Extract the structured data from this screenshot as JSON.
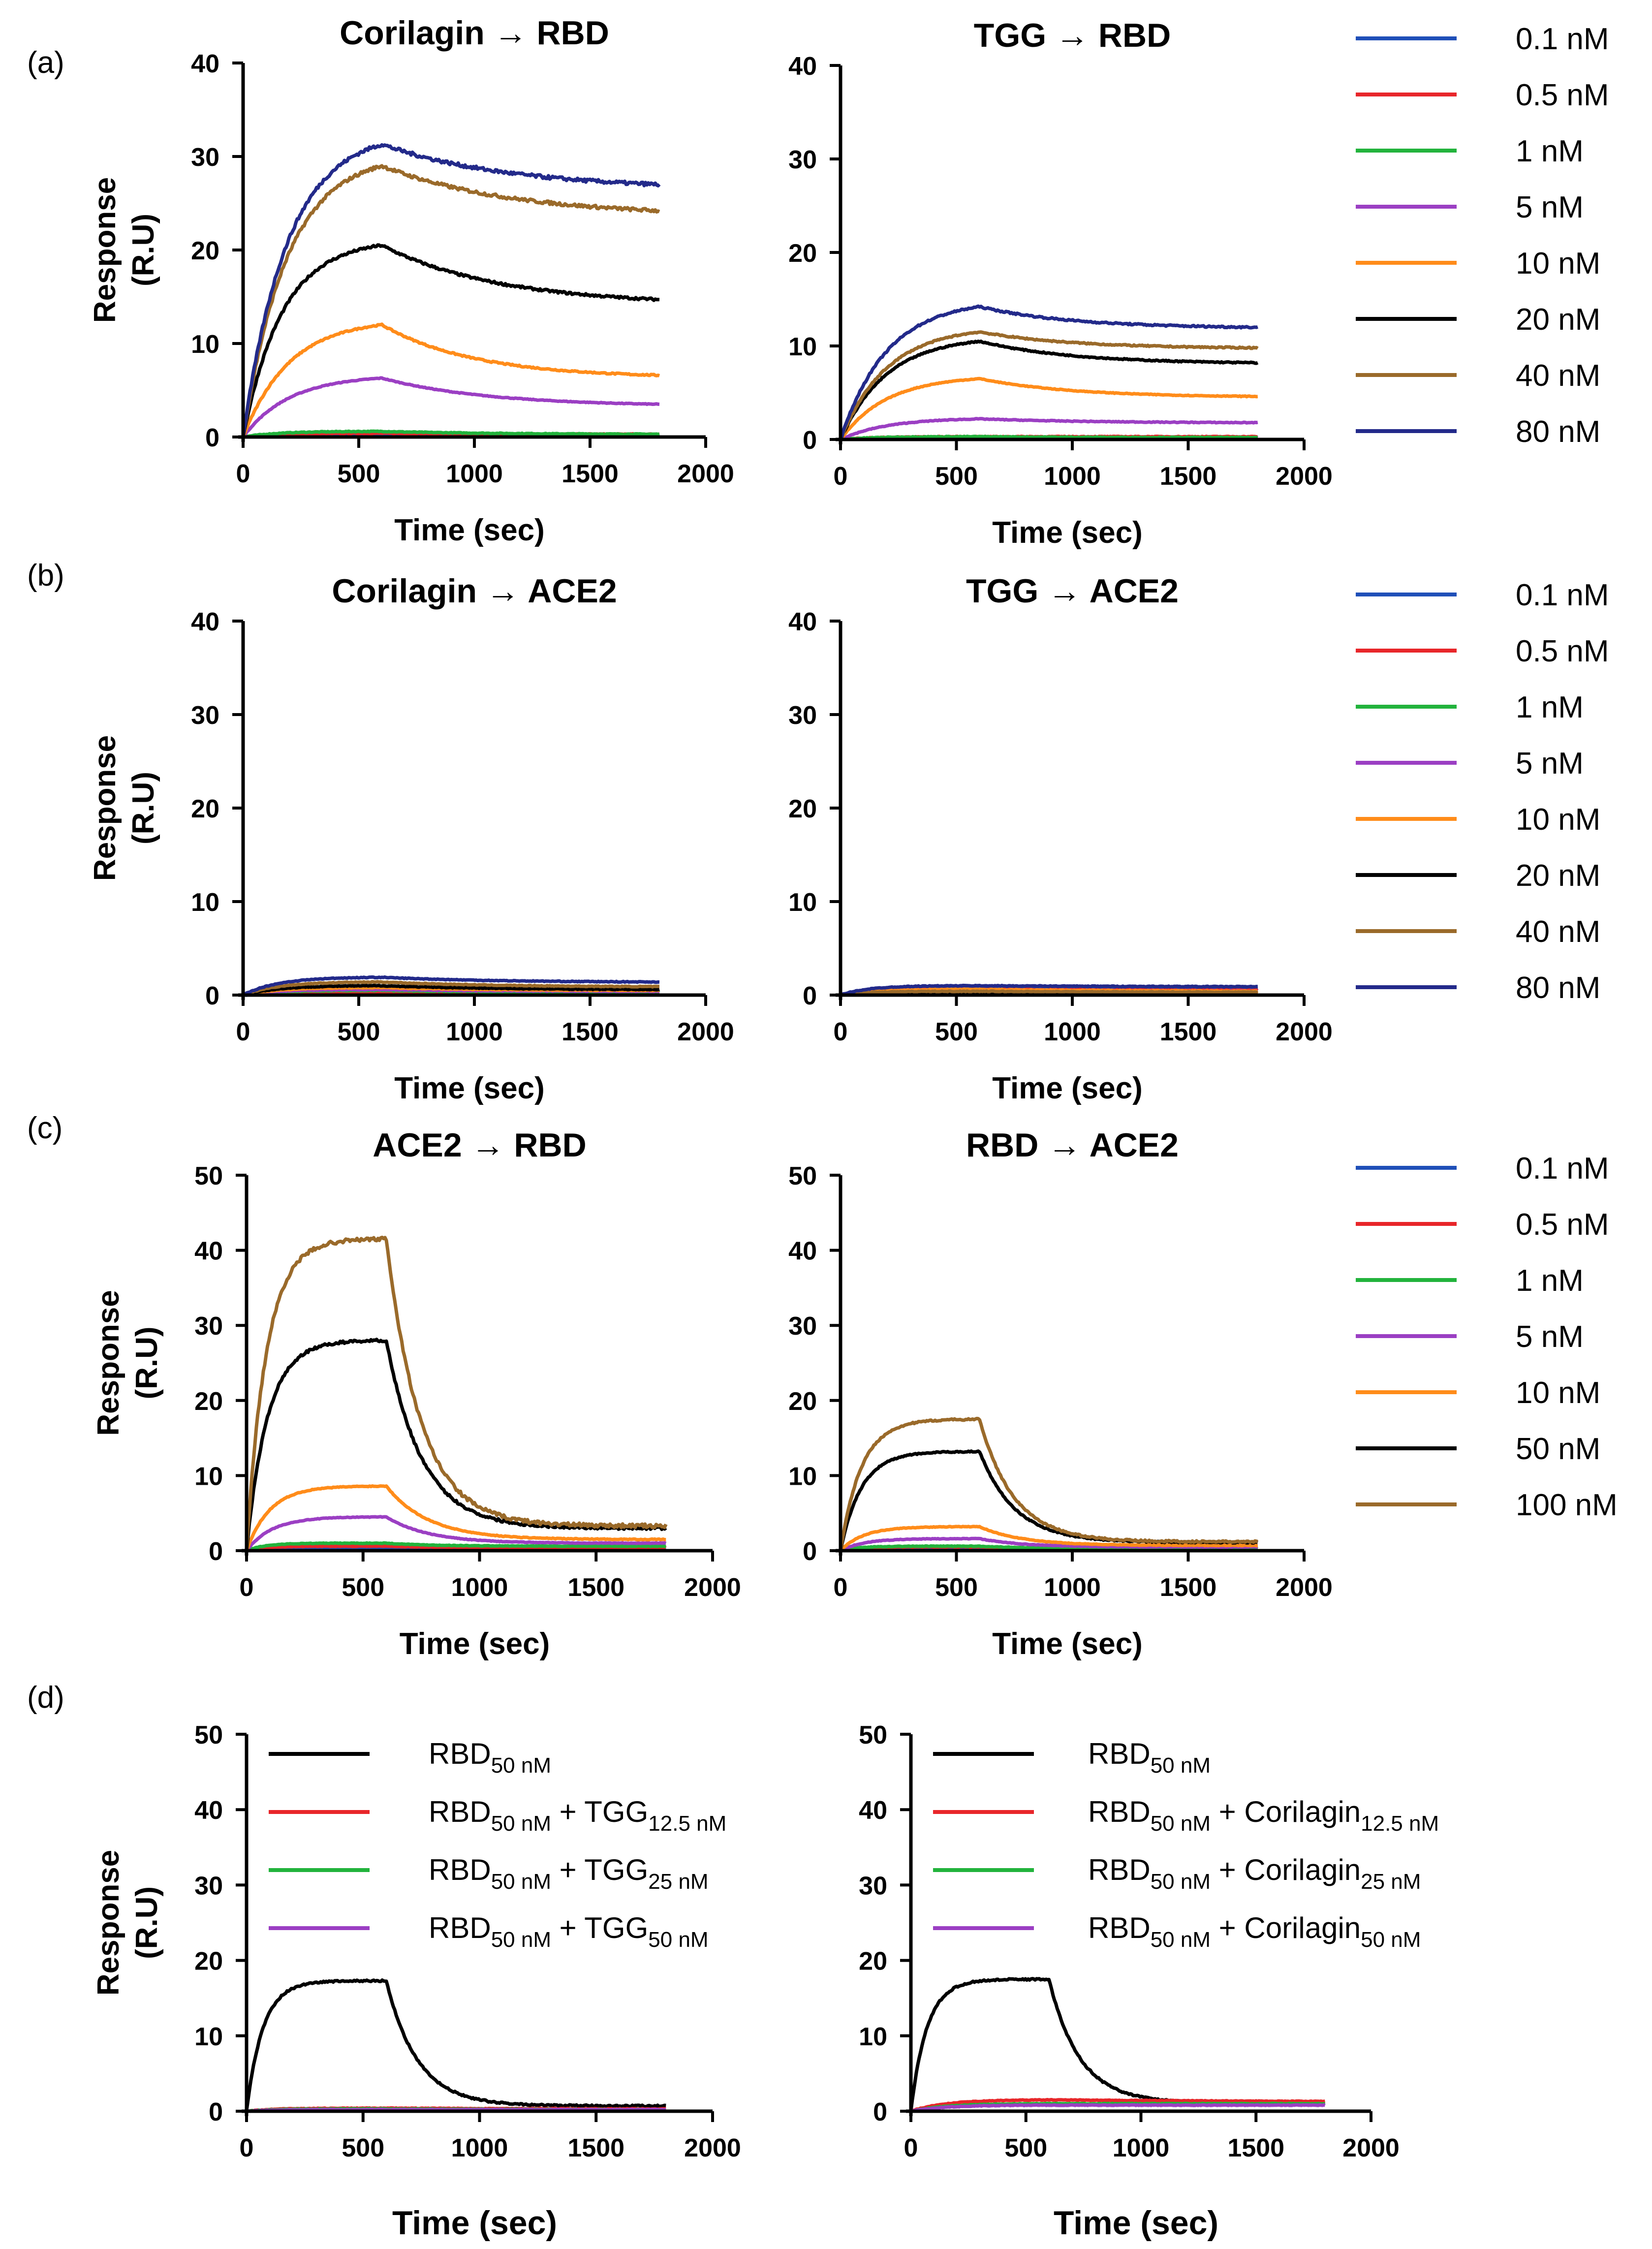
{
  "panel_labels": [
    "(a)",
    "(b)",
    "(c)",
    "(d)"
  ],
  "legends": {
    "ab": [
      {
        "label": "0.1 nM",
        "color": "#1f4fb8"
      },
      {
        "label": "0.5 nM",
        "color": "#e8262a"
      },
      {
        "label": "1 nM",
        "color": "#22b33c"
      },
      {
        "label": "5 nM",
        "color": "#9b3fc3"
      },
      {
        "label": "10 nM",
        "color": "#ff8c1a"
      },
      {
        "label": "20 nM",
        "color": "#000000"
      },
      {
        "label": "40 nM",
        "color": "#9a6a2a"
      },
      {
        "label": "80 nM",
        "color": "#232a8a"
      }
    ],
    "c": [
      {
        "label": "0.1 nM",
        "color": "#1f4fb8"
      },
      {
        "label": "0.5 nM",
        "color": "#e8262a"
      },
      {
        "label": "1 nM",
        "color": "#22b33c"
      },
      {
        "label": "5 nM",
        "color": "#9b3fc3"
      },
      {
        "label": "10 nM",
        "color": "#ff8c1a"
      },
      {
        "label": "50 nM",
        "color": "#000000"
      },
      {
        "label": "100 nM",
        "color": "#9a6a2a"
      }
    ]
  },
  "chart_data": [
    {
      "id": "a-left",
      "type": "line",
      "panel": "(a)",
      "title": "Corilagin → RBD",
      "xlabel": "Time (sec)",
      "ylabel": "Response (R.U)",
      "xlim": [
        0,
        2000
      ],
      "ylim": [
        0,
        40
      ],
      "xticks": [
        0,
        500,
        1000,
        1500,
        2000
      ],
      "yticks": [
        0,
        10,
        20,
        30,
        40
      ],
      "kinetics": {
        "tmax": 1800,
        "tswitch": 600
      },
      "series": [
        {
          "name": "0.1 nM",
          "color": "#1f4fb8",
          "peak": 0.3,
          "end": 0.2,
          "tau": 150,
          "koff": 0.002
        },
        {
          "name": "0.5 nM",
          "color": "#e8262a",
          "peak": 0.4,
          "end": 0.3,
          "tau": 150,
          "koff": 0.002
        },
        {
          "name": "1 nM",
          "color": "#22b33c",
          "peak": 0.6,
          "end": 0.3,
          "tau": 150,
          "koff": 0.002
        },
        {
          "name": "5 nM",
          "color": "#9b3fc3",
          "peak": 6.3,
          "end": 3.5,
          "tau": 200,
          "koff": 0.0022
        },
        {
          "name": "10 nM",
          "color": "#ff8c1a",
          "peak": 12.0,
          "end": 6.6,
          "tau": 200,
          "koff": 0.0025
        },
        {
          "name": "20 nM",
          "color": "#000000",
          "peak": 20.5,
          "end": 14.7,
          "tau": 170,
          "koff": 0.002
        },
        {
          "name": "40 nM",
          "color": "#9a6a2a",
          "peak": 29.0,
          "end": 24.2,
          "tau": 190,
          "koff": 0.0018
        },
        {
          "name": "80 nM",
          "color": "#232a8a",
          "peak": 31.3,
          "end": 27.0,
          "tau": 190,
          "koff": 0.0018
        }
      ]
    },
    {
      "id": "a-right",
      "type": "line",
      "panel": "(a)",
      "title": "TGG → RBD",
      "xlabel": "Time (sec)",
      "ylabel": "",
      "xlim": [
        0,
        2000
      ],
      "ylim": [
        0,
        40
      ],
      "xticks": [
        0,
        500,
        1000,
        1500,
        2000
      ],
      "yticks": [
        0,
        10,
        20,
        30,
        40
      ],
      "kinetics": {
        "tmax": 1800,
        "tswitch": 600
      },
      "series": [
        {
          "name": "0.1 nM",
          "color": "#1f4fb8",
          "peak": 0.2,
          "end": 0.2,
          "tau": 150,
          "koff": 0.002
        },
        {
          "name": "0.5 nM",
          "color": "#e8262a",
          "peak": 0.3,
          "end": 0.3,
          "tau": 150,
          "koff": 0.002
        },
        {
          "name": "1 nM",
          "color": "#22b33c",
          "peak": 0.3,
          "end": 0.2,
          "tau": 150,
          "koff": 0.002
        },
        {
          "name": "5 nM",
          "color": "#9b3fc3",
          "peak": 2.2,
          "end": 1.8,
          "tau": 200,
          "koff": 0.002
        },
        {
          "name": "10 nM",
          "color": "#ff8c1a",
          "peak": 6.5,
          "end": 4.6,
          "tau": 200,
          "koff": 0.0025
        },
        {
          "name": "20 nM",
          "color": "#000000",
          "peak": 10.5,
          "end": 8.2,
          "tau": 200,
          "koff": 0.0025
        },
        {
          "name": "40 nM",
          "color": "#9a6a2a",
          "peak": 11.5,
          "end": 9.8,
          "tau": 200,
          "koff": 0.0025
        },
        {
          "name": "80 nM",
          "color": "#232a8a",
          "peak": 14.2,
          "end": 12.0,
          "tau": 200,
          "koff": 0.0025
        }
      ]
    },
    {
      "id": "b-left",
      "type": "line",
      "panel": "(b)",
      "title": "Corilagin → ACE2",
      "xlabel": "Time (sec)",
      "ylabel": "Response (R.U)",
      "xlim": [
        0,
        2000
      ],
      "ylim": [
        0,
        40
      ],
      "xticks": [
        0,
        500,
        1000,
        1500,
        2000
      ],
      "yticks": [
        0,
        10,
        20,
        30,
        40
      ],
      "kinetics": {
        "tmax": 1800,
        "tswitch": 600
      },
      "series": [
        {
          "name": "0.1 nM",
          "color": "#1f4fb8",
          "peak": 0.2,
          "end": 0.2,
          "tau": 150,
          "koff": 0.002
        },
        {
          "name": "0.5 nM",
          "color": "#e8262a",
          "peak": 0.3,
          "end": 0.2,
          "tau": 150,
          "koff": 0.002
        },
        {
          "name": "1 nM",
          "color": "#22b33c",
          "peak": 0.5,
          "end": 0.3,
          "tau": 150,
          "koff": 0.002
        },
        {
          "name": "5 nM",
          "color": "#9b3fc3",
          "peak": 0.6,
          "end": 0.4,
          "tau": 150,
          "koff": 0.002
        },
        {
          "name": "10 nM",
          "color": "#ff8c1a",
          "peak": 0.8,
          "end": 0.5,
          "tau": 150,
          "koff": 0.002
        },
        {
          "name": "20 nM",
          "color": "#000000",
          "peak": 1.0,
          "end": 0.6,
          "tau": 150,
          "koff": 0.002
        },
        {
          "name": "40 nM",
          "color": "#9a6a2a",
          "peak": 1.4,
          "end": 0.9,
          "tau": 150,
          "koff": 0.002
        },
        {
          "name": "80 nM",
          "color": "#232a8a",
          "peak": 1.9,
          "end": 1.4,
          "tau": 150,
          "koff": 0.002
        }
      ]
    },
    {
      "id": "b-right",
      "type": "line",
      "panel": "(b)",
      "title": "TGG → ACE2",
      "xlabel": "Time (sec)",
      "ylabel": "",
      "xlim": [
        0,
        2000
      ],
      "ylim": [
        0,
        40
      ],
      "xticks": [
        0,
        500,
        1000,
        1500,
        2000
      ],
      "yticks": [
        0,
        10,
        20,
        30,
        40
      ],
      "kinetics": {
        "tmax": 1800,
        "tswitch": 600
      },
      "series": [
        {
          "name": "0.1 nM",
          "color": "#1f4fb8",
          "peak": 0.9,
          "end": 0.8,
          "tau": 120,
          "koff": 0.001
        },
        {
          "name": "0.5 nM",
          "color": "#e8262a",
          "peak": 0.6,
          "end": 0.5,
          "tau": 120,
          "koff": 0.001
        },
        {
          "name": "1 nM",
          "color": "#22b33c",
          "peak": 0.4,
          "end": 0.3,
          "tau": 120,
          "koff": 0.001
        },
        {
          "name": "5 nM",
          "color": "#9b3fc3",
          "peak": 0.5,
          "end": 0.4,
          "tau": 120,
          "koff": 0.001
        },
        {
          "name": "10 nM",
          "color": "#ff8c1a",
          "peak": 0.6,
          "end": 0.4,
          "tau": 120,
          "koff": 0.001
        },
        {
          "name": "20 nM",
          "color": "#000000",
          "peak": 0.3,
          "end": 0.2,
          "tau": 120,
          "koff": 0.001
        },
        {
          "name": "40 nM",
          "color": "#9a6a2a",
          "peak": 0.4,
          "end": 0.3,
          "tau": 120,
          "koff": 0.001
        },
        {
          "name": "80 nM",
          "color": "#232a8a",
          "peak": 1.0,
          "end": 0.9,
          "tau": 120,
          "koff": 0.001
        }
      ]
    },
    {
      "id": "c-left",
      "type": "line",
      "panel": "(c)",
      "title": "ACE2 → RBD",
      "xlabel": "Time (sec)",
      "ylabel": "Response (R.U)",
      "xlim": [
        0,
        2000
      ],
      "ylim": [
        0,
        50
      ],
      "xticks": [
        0,
        500,
        1000,
        1500,
        2000
      ],
      "yticks": [
        0,
        10,
        20,
        30,
        40,
        50
      ],
      "kinetics": {
        "tmax": 1800,
        "tswitch": 600
      },
      "series": [
        {
          "name": "0.1 nM",
          "color": "#1f4fb8",
          "peak": 0.4,
          "end": 0.3,
          "tau": 80,
          "koff": 0.005
        },
        {
          "name": "0.5 nM",
          "color": "#e8262a",
          "peak": 0.6,
          "end": 0.4,
          "tau": 80,
          "koff": 0.005
        },
        {
          "name": "1 nM",
          "color": "#22b33c",
          "peak": 1.0,
          "end": 0.6,
          "tau": 80,
          "koff": 0.005
        },
        {
          "name": "5 nM",
          "color": "#9b3fc3",
          "peak": 4.5,
          "end": 1.0,
          "tau": 110,
          "koff": 0.0055
        },
        {
          "name": "10 nM",
          "color": "#ff8c1a",
          "peak": 8.6,
          "end": 1.5,
          "tau": 100,
          "koff": 0.0055
        },
        {
          "name": "50 nM",
          "color": "#000000",
          "peak": 28.0,
          "end": 3.0,
          "tau": 90,
          "koff": 0.0065
        },
        {
          "name": "100 nM",
          "color": "#9a6a2a",
          "peak": 41.5,
          "end": 3.3,
          "tau": 85,
          "koff": 0.0068
        }
      ]
    },
    {
      "id": "c-right",
      "type": "line",
      "panel": "(c)",
      "title": "RBD → ACE2",
      "xlabel": "Time (sec)",
      "ylabel": "",
      "xlim": [
        0,
        2000
      ],
      "ylim": [
        0,
        50
      ],
      "xticks": [
        0,
        500,
        1000,
        1500,
        2000
      ],
      "yticks": [
        0,
        10,
        20,
        30,
        40,
        50
      ],
      "kinetics": {
        "tmax": 1800,
        "tswitch": 600
      },
      "series": [
        {
          "name": "0.1 nM",
          "color": "#1f4fb8",
          "peak": 0.3,
          "end": 0.2,
          "tau": 80,
          "koff": 0.005
        },
        {
          "name": "0.5 nM",
          "color": "#e8262a",
          "peak": 0.5,
          "end": 0.3,
          "tau": 80,
          "koff": 0.005
        },
        {
          "name": "1 nM",
          "color": "#22b33c",
          "peak": 0.6,
          "end": 0.3,
          "tau": 80,
          "koff": 0.005
        },
        {
          "name": "5 nM",
          "color": "#9b3fc3",
          "peak": 1.6,
          "end": 0.5,
          "tau": 100,
          "koff": 0.0055
        },
        {
          "name": "10 nM",
          "color": "#ff8c1a",
          "peak": 3.2,
          "end": 0.7,
          "tau": 100,
          "koff": 0.0055
        },
        {
          "name": "50 nM",
          "color": "#000000",
          "peak": 13.2,
          "end": 1.1,
          "tau": 90,
          "koff": 0.0065
        },
        {
          "name": "100 nM",
          "color": "#9a6a2a",
          "peak": 17.5,
          "end": 1.2,
          "tau": 90,
          "koff": 0.0068
        }
      ]
    },
    {
      "id": "d-left",
      "type": "line",
      "panel": "(d)",
      "title": "",
      "xlabel": "Time (sec)",
      "ylabel": "Response (R.U)",
      "xlim": [
        0,
        2000
      ],
      "ylim": [
        0,
        50
      ],
      "xticks": [
        0,
        500,
        1000,
        1500,
        2000
      ],
      "yticks": [
        0,
        10,
        20,
        30,
        40,
        50
      ],
      "kinetics": {
        "tmax": 1800,
        "tswitch": 600
      },
      "legend": [
        {
          "base": "RBD",
          "sub1": "50 nM",
          "plus": "",
          "sub2": "",
          "color": "#000000"
        },
        {
          "base": "RBD",
          "sub1": "50 nM",
          "plus": " + TGG",
          "sub2": "12.5 nM",
          "color": "#e8262a"
        },
        {
          "base": "RBD",
          "sub1": "50 nM",
          "plus": " + TGG",
          "sub2": "25 nM",
          "color": "#22b33c"
        },
        {
          "base": "RBD",
          "sub1": "50 nM",
          "plus": " + TGG",
          "sub2": "50 nM",
          "color": "#9b3fc3"
        }
      ],
      "series": [
        {
          "name": "RBD 50 nM",
          "color": "#000000",
          "peak": 17.3,
          "end": 0.7,
          "tau": 70,
          "koff": 0.0075
        },
        {
          "name": "RBD 50 nM + TGG 12.5 nM",
          "color": "#e8262a",
          "peak": 0.4,
          "end": 0.3,
          "tau": 120,
          "koff": 0.001
        },
        {
          "name": "RBD 50 nM + TGG 25 nM",
          "color": "#22b33c",
          "peak": 0.3,
          "end": 0.2,
          "tau": 120,
          "koff": 0.001
        },
        {
          "name": "RBD 50 nM + TGG 50 nM",
          "color": "#9b3fc3",
          "peak": 0.2,
          "end": 0.2,
          "tau": 120,
          "koff": 0.001
        }
      ]
    },
    {
      "id": "d-right",
      "type": "line",
      "panel": "(d)",
      "title": "",
      "xlabel": "Time (sec)",
      "ylabel": "",
      "xlim": [
        0,
        2000
      ],
      "ylim": [
        0,
        50
      ],
      "xticks": [
        0,
        500,
        1000,
        1500,
        2000
      ],
      "yticks": [
        0,
        10,
        20,
        30,
        40,
        50
      ],
      "kinetics": {
        "tmax": 1800,
        "tswitch": 600
      },
      "legend": [
        {
          "base": "RBD",
          "sub1": "50 nM",
          "plus": "",
          "sub2": "",
          "color": "#000000"
        },
        {
          "base": "RBD",
          "sub1": "50 nM",
          "plus": " + Corilagin",
          "sub2": "12.5 nM",
          "color": "#e8262a"
        },
        {
          "base": "RBD",
          "sub1": "50 nM",
          "plus": " + Corilagin",
          "sub2": "25 nM",
          "color": "#22b33c"
        },
        {
          "base": "RBD",
          "sub1": "50 nM",
          "plus": " + Corilagin",
          "sub2": "50 nM",
          "color": "#9b3fc3"
        }
      ],
      "series": [
        {
          "name": "RBD 50 nM",
          "color": "#000000",
          "peak": 17.5,
          "end": 1.1,
          "tau": 70,
          "koff": 0.0075
        },
        {
          "name": "RBD 50 nM + Corilagin 12.5 nM",
          "color": "#e8262a",
          "peak": 1.5,
          "end": 1.3,
          "tau": 150,
          "koff": 0.0005
        },
        {
          "name": "RBD 50 nM + Corilagin 25 nM",
          "color": "#22b33c",
          "peak": 1.0,
          "end": 1.1,
          "tau": 150,
          "koff": 0.0003
        },
        {
          "name": "RBD 50 nM + Corilagin 50 nM",
          "color": "#9b3fc3",
          "peak": 0.8,
          "end": 0.9,
          "tau": 150,
          "koff": 0.0003
        }
      ]
    }
  ]
}
